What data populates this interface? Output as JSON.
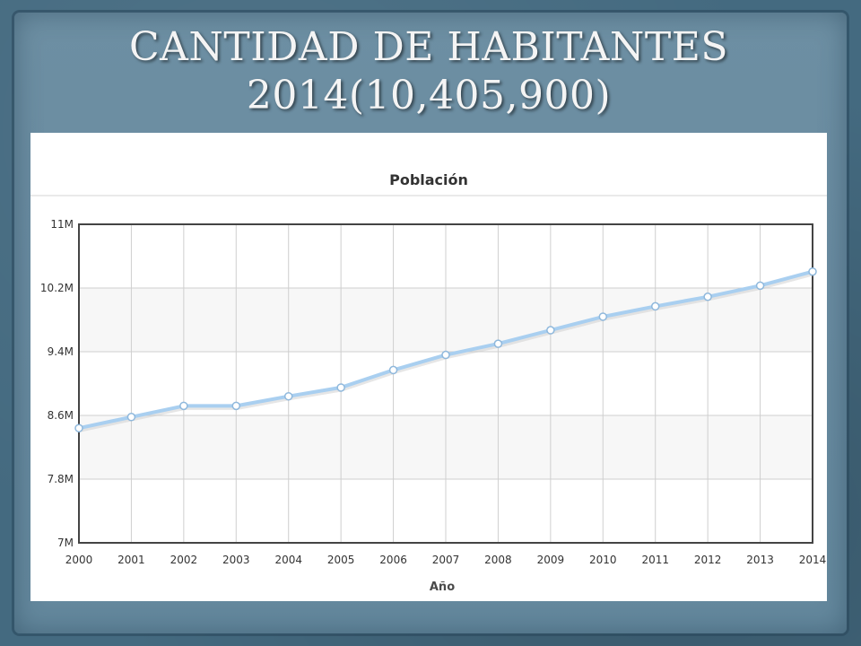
{
  "slide": {
    "title_line1": "CANTIDAD DE HABITANTES",
    "title_line2": "2014(10,405,900)"
  },
  "chart_data": {
    "type": "line",
    "title": "Población",
    "xlabel": "Año",
    "ylabel": "",
    "x": [
      2000,
      2001,
      2002,
      2003,
      2004,
      2005,
      2006,
      2007,
      2008,
      2009,
      2010,
      2011,
      2012,
      2013,
      2014
    ],
    "y_tick_labels": [
      "7M",
      "7.8M",
      "8.6M",
      "9.4M",
      "10.2M",
      "11M"
    ],
    "y_ticks": [
      7000000,
      7800000,
      8600000,
      9400000,
      10200000,
      11000000
    ],
    "ylim": [
      7000000,
      11000000
    ],
    "xlim": [
      2000,
      2014
    ],
    "grid": true,
    "series": [
      {
        "values": [
          8440000,
          8580000,
          8720000,
          8720000,
          8840000,
          8950000,
          9170000,
          9360000,
          9500000,
          9670000,
          9840000,
          9970000,
          10090000,
          10230000,
          10405900
        ]
      }
    ],
    "colors": {
      "line": "#a9cff0",
      "line_shadow": "#c8c8c8",
      "point_fill": "#ffffff",
      "point_stroke": "#8fb8dc",
      "plot_band": "#f7f7f7",
      "frame": "#444444"
    }
  }
}
